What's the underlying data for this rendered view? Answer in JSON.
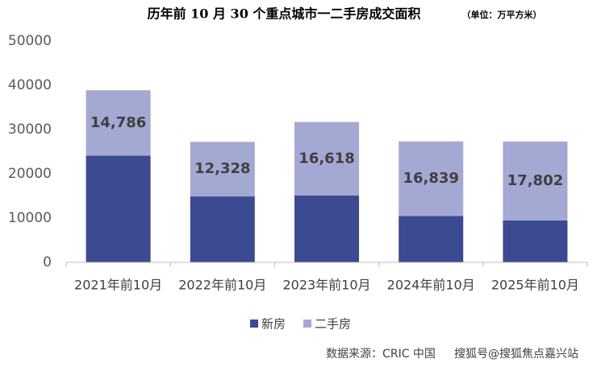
{
  "chart_data": {
    "type": "stacked_bar",
    "title": "历年前 10 月 30 个重点城市一二手房成交面积",
    "subtitle": "（单位：万平方米）",
    "categories": [
      "2021年前10月",
      "2022年前10月",
      "2023年前10月",
      "2024年前10月",
      "2025年前10月"
    ],
    "series": [
      {
        "name": "新房",
        "color": "#3b4a91",
        "values": [
          24100,
          14900,
          15100,
          10500,
          9500
        ]
      },
      {
        "name": "二手房",
        "color": "#a3a9d3",
        "values": [
          14786,
          12328,
          16618,
          16839,
          17802
        ],
        "value_labels": [
          "14,786",
          "12,328",
          "16,618",
          "16,839",
          "17,802"
        ]
      }
    ],
    "ylim": [
      0,
      50000
    ],
    "yticks": [
      0,
      10000,
      20000,
      30000,
      40000,
      50000
    ],
    "grid": false,
    "legend": "bottom",
    "source": "数据来源：CRIC 中国",
    "watermark": "搜狐号@搜狐焦点嘉兴站"
  }
}
